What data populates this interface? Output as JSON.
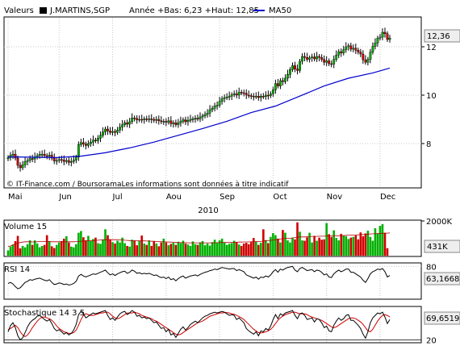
{
  "legend": {
    "label": "Valeurs",
    "symbol": "J.MARTINS,SGP",
    "stats": "Année +Bas: 6,23 +Haut: 12,85",
    "ma_label": "MA50"
  },
  "credit": "© IT-Finance.com / BoursoramaLes informations sont données à titre indicatif",
  "year": "2010",
  "colors": {
    "up": "#00b000",
    "down": "#d00000",
    "ma": "#0000cc",
    "grid": "#c8c8c8",
    "box": "#000000"
  },
  "x_ticks": [
    {
      "label": "Mai",
      "i": 0
    },
    {
      "label": "Jun",
      "i": 21
    },
    {
      "label": "Jul",
      "i": 43
    },
    {
      "label": "Aou",
      "i": 65
    },
    {
      "label": "Sep",
      "i": 87
    },
    {
      "label": "Oct",
      "i": 109
    },
    {
      "label": "Nov",
      "i": 131
    },
    {
      "label": "Dec",
      "i": 153
    }
  ],
  "chart_data": [
    {
      "id": "price",
      "type": "candlestick",
      "ylim": [
        6.2,
        13.2
      ],
      "y_ticks": [
        8,
        10,
        12
      ],
      "grid": true,
      "last_value": "12,36",
      "closes": [
        7.42,
        7.52,
        7.56,
        7.4,
        7.1,
        7.0,
        7.12,
        7.26,
        7.3,
        7.38,
        7.36,
        7.44,
        7.5,
        7.56,
        7.56,
        7.5,
        7.48,
        7.52,
        7.4,
        7.28,
        7.3,
        7.34,
        7.32,
        7.26,
        7.3,
        7.22,
        7.26,
        7.32,
        7.44,
        7.96,
        8.04,
        7.98,
        7.92,
        8.0,
        8.06,
        8.14,
        8.12,
        8.22,
        8.34,
        8.48,
        8.6,
        8.52,
        8.46,
        8.5,
        8.46,
        8.56,
        8.68,
        8.78,
        8.86,
        8.8,
        8.9,
        9.06,
        9.04,
        8.98,
        9.0,
        8.98,
        9.02,
        9.0,
        9.02,
        9.0,
        8.96,
        9.0,
        8.94,
        8.9,
        8.92,
        8.88,
        8.94,
        8.82,
        8.86,
        8.78,
        8.86,
        8.92,
        8.98,
        8.9,
        8.96,
        9.0,
        9.02,
        9.04,
        9.02,
        9.1,
        9.14,
        9.2,
        9.26,
        9.4,
        9.46,
        9.56,
        9.58,
        9.74,
        9.86,
        9.9,
        9.92,
        9.96,
        10.02,
        10.06,
        10.0,
        10.12,
        10.1,
        10.08,
        10.0,
        9.98,
        9.96,
        9.94,
        9.96,
        9.9,
        9.96,
        9.94,
        10.0,
        9.98,
        10.06,
        10.22,
        10.48,
        10.38,
        10.6,
        10.56,
        10.7,
        10.86,
        11.06,
        11.22,
        11.08,
        11.02,
        11.4,
        11.6,
        11.56,
        11.48,
        11.54,
        11.58,
        11.5,
        11.6,
        11.56,
        11.48,
        11.36,
        11.42,
        11.3,
        11.28,
        11.48,
        11.66,
        11.8,
        11.74,
        11.88,
        12.0,
        12.04,
        11.9,
        11.94,
        11.86,
        11.78,
        11.7,
        11.46,
        11.36,
        11.48,
        11.78,
        12.02,
        12.16,
        12.36,
        12.4,
        12.6,
        12.54,
        12.3,
        12.36
      ],
      "ma50": [
        {
          "i": 0,
          "v": 7.45
        },
        {
          "i": 20,
          "v": 7.42
        },
        {
          "i": 30,
          "v": 7.48
        },
        {
          "i": 40,
          "v": 7.62
        },
        {
          "i": 50,
          "v": 7.82
        },
        {
          "i": 60,
          "v": 8.06
        },
        {
          "i": 70,
          "v": 8.34
        },
        {
          "i": 80,
          "v": 8.62
        },
        {
          "i": 90,
          "v": 8.92
        },
        {
          "i": 100,
          "v": 9.28
        },
        {
          "i": 110,
          "v": 9.55
        },
        {
          "i": 120,
          "v": 9.96
        },
        {
          "i": 130,
          "v": 10.38
        },
        {
          "i": 140,
          "v": 10.7
        },
        {
          "i": 150,
          "v": 10.92
        },
        {
          "i": 157,
          "v": 11.12
        }
      ]
    },
    {
      "id": "volume",
      "type": "bar",
      "title": "Volume 15",
      "ylim": [
        0,
        2000
      ],
      "y_ticks": [
        {
          "v": 2000,
          "label": "2000K"
        }
      ],
      "last_value": "431K",
      "volumes": [
        300,
        520,
        640,
        840,
        1140,
        420,
        560,
        480,
        660,
        880,
        620,
        880,
        700,
        480,
        560,
        620,
        1180,
        840,
        540,
        440,
        620,
        760,
        840,
        980,
        1120,
        760,
        520,
        480,
        660,
        1320,
        1420,
        1060,
        880,
        1140,
        840,
        960,
        1040,
        720,
        680,
        940,
        1520,
        1180,
        940,
        780,
        700,
        860,
        760,
        1040,
        720,
        560,
        520,
        920,
        880,
        600,
        840,
        1160,
        700,
        620,
        880,
        560,
        820,
        700,
        540,
        760,
        980,
        760,
        600,
        680,
        740,
        620,
        800,
        720,
        860,
        700,
        640,
        560,
        820,
        660,
        620,
        760,
        840,
        600,
        700,
        580,
        780,
        920,
        740,
        880,
        980,
        760,
        620,
        680,
        720,
        860,
        780,
        640,
        560,
        700,
        740,
        660,
        780,
        1020,
        820,
        620,
        740,
        1520,
        900,
        720,
        1080,
        1300,
        1180,
        980,
        760,
        1480,
        1320,
        880,
        760,
        1040,
        940,
        1920,
        1380,
        880,
        860,
        1060,
        1320,
        760,
        1140,
        860,
        1040,
        920,
        940,
        1880,
        1240,
        1080,
        1460,
        1020,
        880,
        1260,
        1160,
        1120,
        960,
        1040,
        1080,
        1160,
        940,
        1340,
        1120,
        1280,
        1440,
        1080,
        860,
        1580,
        1280,
        1720,
        1820,
        1320,
        431
      ],
      "volume_ma": [
        520,
        560,
        620,
        680,
        720,
        760,
        780,
        800,
        800,
        800,
        790,
        790,
        800,
        820,
        820,
        820,
        810,
        810,
        800,
        800,
        800,
        800,
        800,
        800,
        800,
        800,
        800,
        800,
        810,
        820,
        830,
        840,
        850,
        860,
        860,
        870,
        880,
        890,
        900,
        910,
        920,
        920,
        920,
        920,
        920,
        920,
        910,
        900,
        890,
        880,
        870,
        860,
        860,
        860,
        850,
        850,
        850,
        840,
        840,
        830,
        830,
        820,
        810,
        800,
        800,
        790,
        780,
        780,
        770,
        760,
        760,
        750,
        750,
        750,
        740,
        740,
        740,
        740,
        740,
        740,
        740,
        740,
        740,
        740,
        740,
        740,
        750,
        750,
        760,
        760,
        760,
        760,
        760,
        760,
        770,
        780,
        780,
        790,
        790,
        790,
        800,
        800,
        810,
        810,
        820,
        840,
        850,
        860,
        880,
        900,
        920,
        940,
        960,
        980,
        1000,
        1000,
        1000,
        1020,
        1040,
        1060,
        1080,
        1080,
        1080,
        1090,
        1100,
        1110,
        1110,
        1110,
        1120,
        1120,
        1120,
        1130,
        1130,
        1140,
        1140,
        1140,
        1150,
        1160,
        1160,
        1170,
        1180,
        1180,
        1190,
        1190,
        1200,
        1210,
        1220,
        1230,
        1240,
        1250,
        1260,
        1260,
        1270,
        1280,
        1290,
        1300,
        1300,
        1310
      ]
    },
    {
      "id": "rsi",
      "type": "line",
      "title": "RSI 14",
      "ylim": [
        20,
        85
      ],
      "y_ticks": [
        80
      ],
      "last_value": "63,1668",
      "values": [
        48,
        50,
        47,
        42,
        38,
        40,
        45,
        50,
        52,
        55,
        54,
        56,
        57,
        58,
        56,
        54,
        53,
        55,
        50,
        46,
        47,
        49,
        48,
        46,
        47,
        45,
        46,
        48,
        52,
        62,
        65,
        62,
        60,
        62,
        64,
        66,
        65,
        67,
        69,
        71,
        73,
        68,
        64,
        66,
        63,
        66,
        68,
        70,
        71,
        67,
        69,
        73,
        71,
        67,
        68,
        66,
        67,
        66,
        67,
        65,
        63,
        64,
        61,
        59,
        60,
        57,
        60,
        55,
        57,
        53,
        57,
        60,
        62,
        58,
        60,
        62,
        63,
        64,
        62,
        65,
        67,
        69,
        70,
        72,
        73,
        75,
        74,
        76,
        78,
        77,
        76,
        75,
        76,
        76,
        72,
        74,
        72,
        70,
        64,
        62,
        60,
        58,
        60,
        56,
        60,
        59,
        62,
        60,
        64,
        70,
        74,
        69,
        75,
        73,
        76,
        78,
        79,
        80,
        73,
        70,
        76,
        78,
        75,
        72,
        73,
        74,
        70,
        73,
        72,
        69,
        64,
        66,
        60,
        59,
        66,
        70,
        73,
        70,
        72,
        75,
        75,
        69,
        69,
        66,
        63,
        60,
        54,
        50,
        57,
        66,
        70,
        72,
        75,
        74,
        76,
        70,
        60,
        63
      ]
    },
    {
      "id": "stochastic",
      "type": "line",
      "title": "Stochastique 14 3 5",
      "ylim": [
        15,
        100
      ],
      "y_ticks": [
        20
      ],
      "last_value": "69,6519",
      "k": [
        40,
        55,
        62,
        50,
        30,
        20,
        25,
        38,
        52,
        62,
        68,
        72,
        78,
        80,
        75,
        70,
        66,
        70,
        60,
        48,
        42,
        45,
        40,
        34,
        38,
        32,
        36,
        44,
        58,
        82,
        90,
        84,
        74,
        78,
        82,
        86,
        84,
        86,
        88,
        90,
        92,
        80,
        70,
        74,
        68,
        76,
        84,
        88,
        90,
        82,
        86,
        92,
        88,
        78,
        80,
        74,
        76,
        72,
        74,
        68,
        62,
        64,
        56,
        48,
        50,
        40,
        46,
        32,
        36,
        26,
        36,
        46,
        52,
        44,
        50,
        58,
        62,
        66,
        62,
        68,
        74,
        78,
        80,
        84,
        86,
        88,
        86,
        88,
        90,
        88,
        84,
        80,
        82,
        80,
        70,
        74,
        68,
        62,
        48,
        42,
        38,
        34,
        40,
        30,
        42,
        40,
        48,
        44,
        54,
        70,
        82,
        72,
        84,
        80,
        86,
        88,
        90,
        92,
        80,
        72,
        84,
        86,
        80,
        70,
        72,
        74,
        64,
        72,
        70,
        62,
        50,
        54,
        42,
        40,
        56,
        66,
        74,
        68,
        72,
        80,
        82,
        68,
        68,
        62,
        56,
        48,
        34,
        24,
        40,
        62,
        74,
        80,
        86,
        84,
        88,
        76,
        60,
        70
      ],
      "d": [
        45,
        48,
        52,
        56,
        50,
        40,
        32,
        28,
        32,
        40,
        50,
        58,
        66,
        72,
        76,
        76,
        74,
        72,
        68,
        62,
        54,
        48,
        44,
        40,
        38,
        36,
        36,
        38,
        44,
        56,
        70,
        80,
        84,
        82,
        80,
        80,
        82,
        84,
        86,
        86,
        88,
        88,
        84,
        78,
        74,
        72,
        74,
        78,
        82,
        86,
        86,
        86,
        88,
        86,
        84,
        80,
        78,
        76,
        74,
        72,
        68,
        66,
        62,
        58,
        54,
        50,
        46,
        42,
        38,
        34,
        32,
        34,
        38,
        42,
        46,
        50,
        54,
        58,
        62,
        64,
        66,
        70,
        74,
        78,
        80,
        82,
        84,
        86,
        86,
        87,
        87,
        86,
        84,
        83,
        80,
        77,
        74,
        70,
        64,
        58,
        52,
        46,
        42,
        38,
        37,
        38,
        40,
        42,
        46,
        52,
        60,
        68,
        74,
        78,
        82,
        84,
        86,
        88,
        88,
        86,
        84,
        84,
        84,
        82,
        78,
        76,
        74,
        72,
        70,
        68,
        64,
        60,
        56,
        52,
        50,
        52,
        56,
        60,
        64,
        68,
        72,
        74,
        74,
        72,
        68,
        64,
        58,
        50,
        42,
        40,
        46,
        56,
        66,
        74,
        80,
        82,
        80,
        76
      ]
    }
  ]
}
